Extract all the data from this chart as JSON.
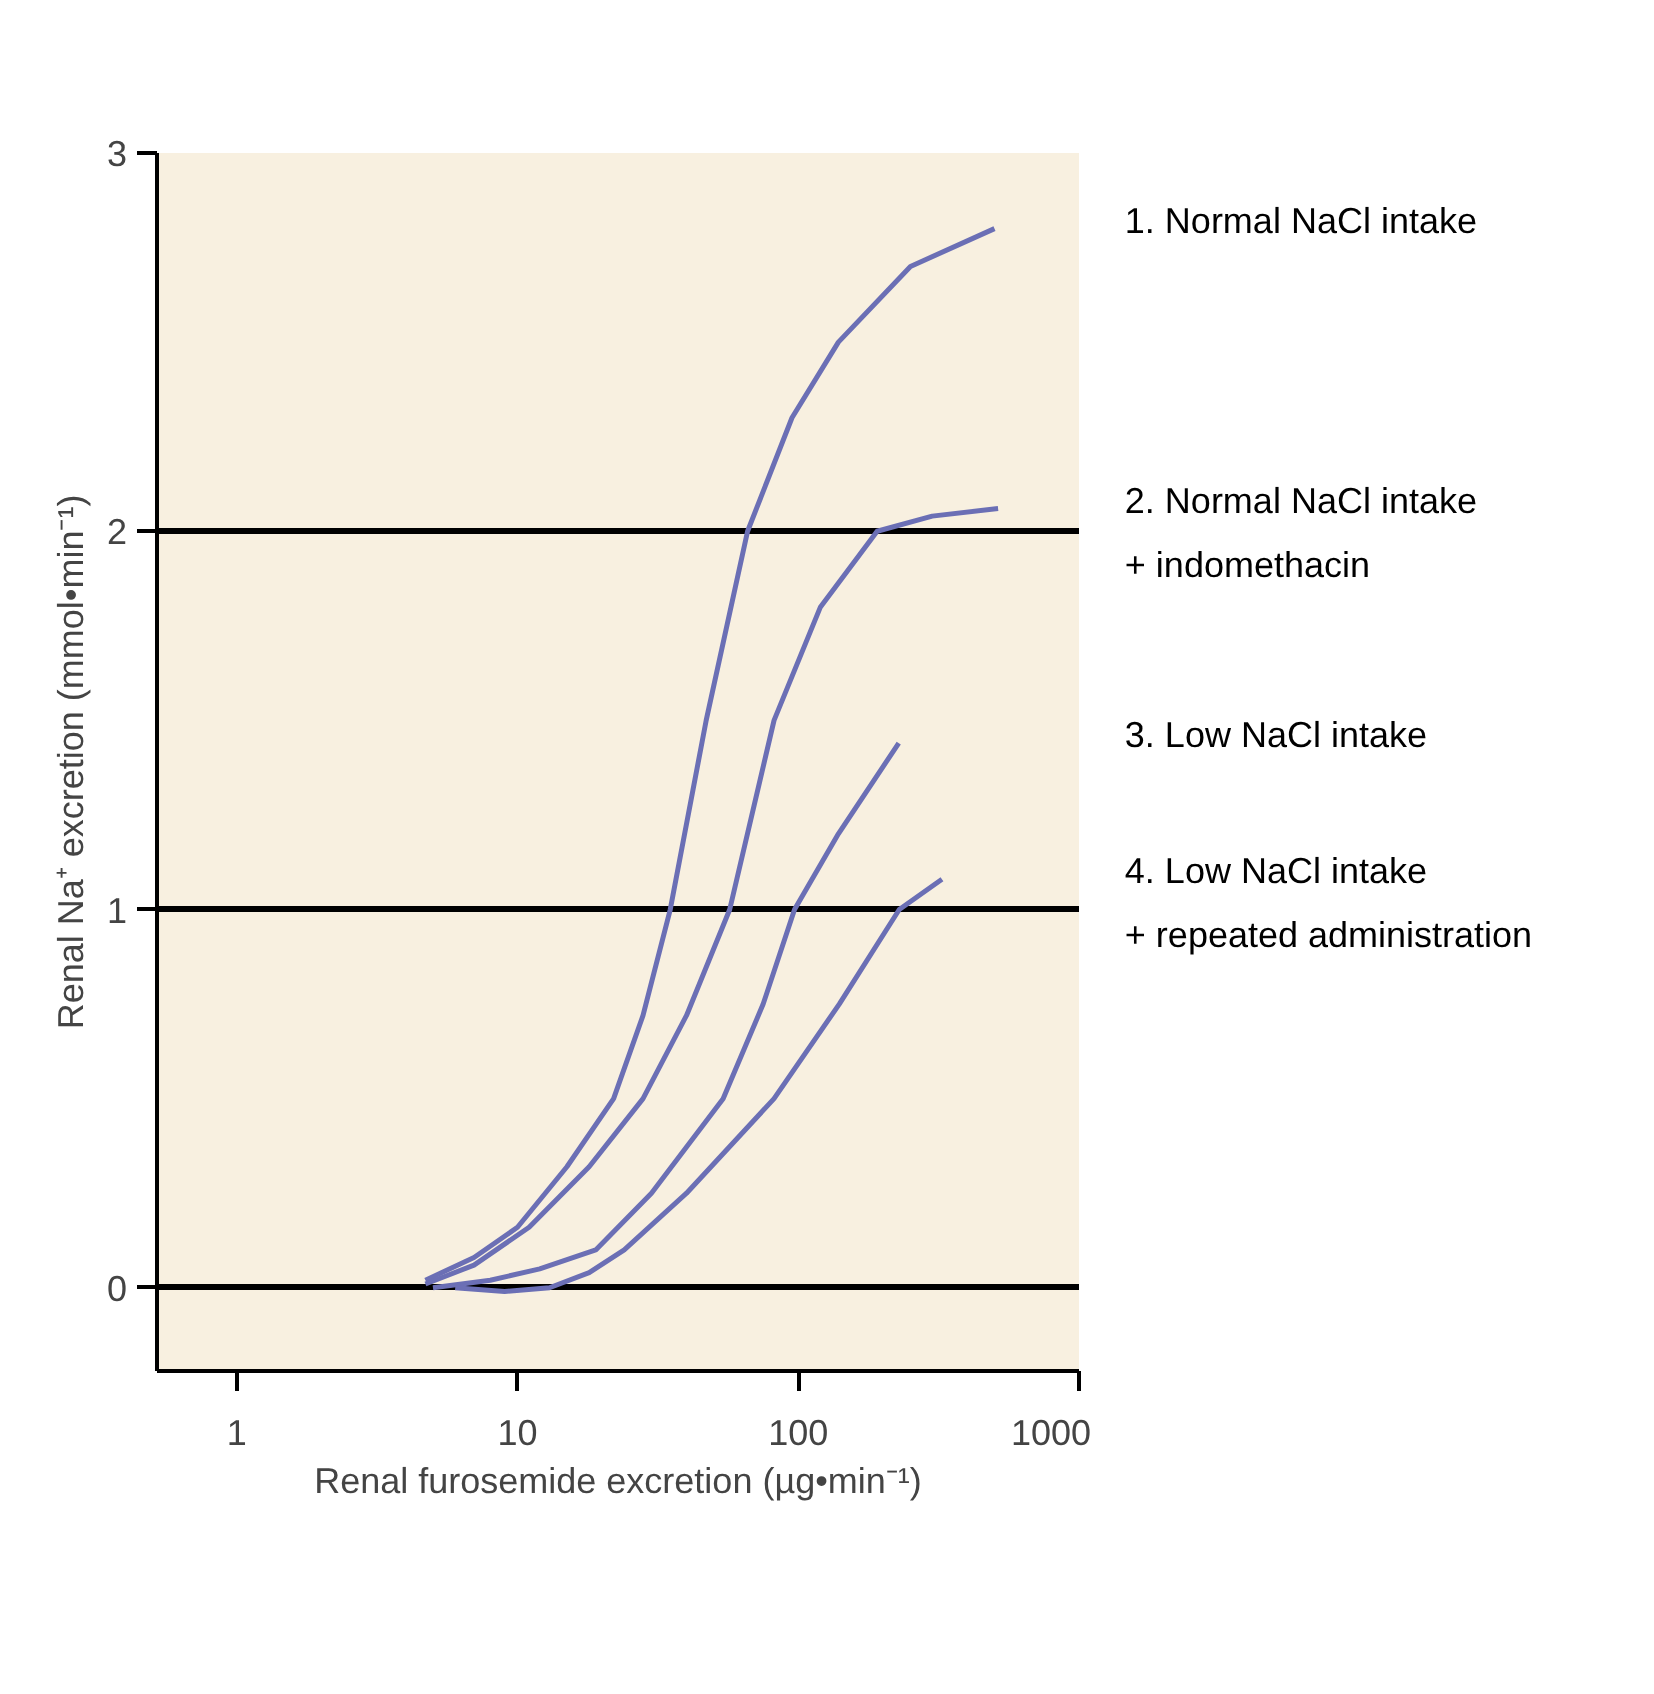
{
  "chart_data": {
    "type": "line",
    "xlabel": "Renal furosemide excretion (µg•min⁻¹)",
    "ylabel": "Renal Na⁺ excretion (mmol•min⁻¹)",
    "log": "x",
    "xlim": [
      0.52,
      1000
    ],
    "xticks": [
      1,
      10,
      100,
      1000
    ],
    "ylim": [
      -0.22,
      3
    ],
    "yticks": [
      0,
      1,
      2,
      3
    ],
    "grid": "y",
    "legend": false,
    "marker": "none",
    "line_style": "solid",
    "series": [
      {
        "name": "1. Normal NaCl intake",
        "color": "#6b6fb5",
        "x": [
          4.7,
          7,
          10,
          15,
          22,
          28,
          35,
          47,
          66,
          95,
          139,
          251,
          500
        ],
        "values": [
          0.02,
          0.08,
          0.16,
          0.32,
          0.5,
          0.72,
          1.0,
          1.5,
          2.0,
          2.3,
          2.5,
          2.7,
          2.8
        ]
      },
      {
        "name": "2. Normal NaCl intake\n+ indomethacin",
        "color": "#6b6fb5",
        "x": [
          4.7,
          7,
          11,
          18,
          28,
          40,
          57,
          82,
          120,
          191,
          300,
          515
        ],
        "values": [
          0.01,
          0.06,
          0.16,
          0.32,
          0.5,
          0.72,
          1.0,
          1.5,
          1.8,
          2.0,
          2.04,
          2.06
        ]
      },
      {
        "name": "3. Low NaCl intake",
        "color": "#6b6fb5",
        "x": [
          5,
          8,
          12,
          19,
          30,
          54,
          75,
          97,
          139,
          228
        ],
        "values": [
          0.0,
          0.02,
          0.05,
          0.1,
          0.25,
          0.5,
          0.75,
          1.0,
          1.2,
          1.44
        ]
      },
      {
        "name": "4. Low NaCl intake\n+ repeated administration",
        "color": "#6b6fb5",
        "x": [
          6,
          9,
          13,
          18,
          24,
          40,
          82,
          140,
          229,
          325
        ],
        "values": [
          0.0,
          -0.01,
          0.0,
          0.04,
          0.1,
          0.25,
          0.5,
          0.75,
          1.0,
          1.08
        ]
      }
    ]
  }
}
